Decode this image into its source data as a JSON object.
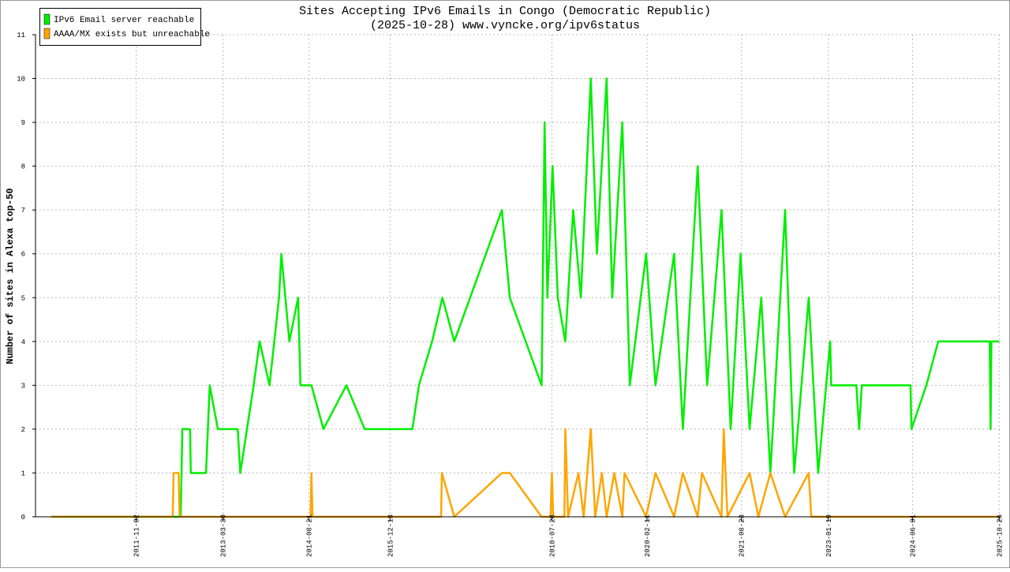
{
  "chart_data": {
    "type": "line",
    "title": "Sites Accepting IPv6 Emails in Congo (Democratic Republic)",
    "subtitle": "(2025-10-28) www.vyncke.org/ipv6status",
    "y_label": "Number of sites in Alexa top-50",
    "xlim": [
      "2010-03-16",
      "2025-11-03"
    ],
    "xticks": [
      "2011-11-02",
      "2013-03-30",
      "2014-08-21",
      "2015-12-13",
      "2018-07-28",
      "2020-02-11",
      "2021-08-23",
      "2023-01-19",
      "2024-06-01",
      "2025-10-26"
    ],
    "ylim": [
      0,
      11
    ],
    "yticks": [
      0,
      1,
      2,
      3,
      4,
      5,
      6,
      7,
      8,
      9,
      10,
      11
    ],
    "grid": true,
    "legend": "top-left",
    "series": [
      {
        "name": "IPv6 Email server reachable",
        "color": "#00ee00",
        "x": [
          "2010-06-18",
          "2012-07-22",
          "2012-08-01",
          "2012-09-16",
          "2012-09-20",
          "2012-12-19",
          "2013-01-10",
          "2013-02-27",
          "2013-06-25",
          "2013-07-10",
          "2013-09-27",
          "2013-11-01",
          "2013-12-30",
          "2014-02-24",
          "2014-03-10",
          "2014-04-26",
          "2014-06-17",
          "2014-07-01",
          "2014-09-04",
          "2014-11-14",
          "2015-03-30",
          "2015-07-16",
          "2016-04-23",
          "2016-06-01",
          "2016-08-18",
          "2016-10-18",
          "2016-12-27",
          "2017-10-05",
          "2017-11-21",
          "2018-05-28",
          "2018-06-15",
          "2018-07-01",
          "2018-08-01",
          "2018-09-01",
          "2018-10-15",
          "2018-12-01",
          "2019-01-15",
          "2019-03-15",
          "2019-04-20",
          "2019-06-17",
          "2019-07-20",
          "2019-09-18",
          "2019-11-01",
          "2020-02-06",
          "2020-04-01",
          "2020-07-20",
          "2020-09-10",
          "2020-12-07",
          "2021-02-01",
          "2021-04-27",
          "2021-06-20",
          "2021-08-18",
          "2021-10-10",
          "2021-12-18",
          "2022-02-10",
          "2022-05-08",
          "2022-07-01",
          "2022-09-25",
          "2022-11-20",
          "2023-01-30",
          "2023-02-05",
          "2023-07-04",
          "2023-07-20",
          "2023-08-05",
          "2024-05-19",
          "2024-05-25",
          "2024-08-21",
          "2024-10-30",
          "2025-08-31",
          "2025-09-05",
          "2025-09-10",
          "2025-10-26"
        ],
        "values": [
          0,
          0,
          2,
          2,
          1,
          1,
          3,
          2,
          2,
          1,
          3,
          4,
          3,
          5,
          6,
          4,
          5,
          3,
          3,
          2,
          3,
          2,
          2,
          3,
          4,
          5,
          4,
          7,
          5,
          3,
          9,
          5,
          8,
          5,
          4,
          7,
          5,
          10,
          6,
          10,
          5,
          9,
          3,
          6,
          3,
          6,
          2,
          8,
          3,
          7,
          2,
          6,
          2,
          5,
          1,
          7,
          1,
          5,
          1,
          4,
          3,
          3,
          2,
          3,
          3,
          2,
          3,
          4,
          4,
          2,
          4,
          4
        ]
      },
      {
        "name": "AAAA/MX exists but unreachable",
        "color": "#ffa500",
        "x": [
          "2010-06-18",
          "2012-06-05",
          "2012-06-10",
          "2012-07-10",
          "2012-07-15",
          "2014-08-30",
          "2014-09-04",
          "2014-09-10",
          "2016-10-10",
          "2016-10-15",
          "2016-12-27",
          "2017-10-05",
          "2017-11-21",
          "2018-05-28",
          "2018-07-20",
          "2018-07-28",
          "2018-08-05",
          "2018-10-10",
          "2018-10-15",
          "2018-11-01",
          "2019-01-01",
          "2019-02-01",
          "2019-03-15",
          "2019-04-10",
          "2019-05-20",
          "2019-06-17",
          "2019-08-01",
          "2019-09-18",
          "2019-10-01",
          "2020-02-06",
          "2020-04-01",
          "2020-07-20",
          "2020-09-10",
          "2020-12-07",
          "2021-01-01",
          "2021-04-27",
          "2021-05-10",
          "2021-06-01",
          "2021-10-10",
          "2021-12-01",
          "2022-02-10",
          "2022-05-08",
          "2022-09-25",
          "2022-10-10",
          "2022-11-01",
          "2025-10-26"
        ],
        "values": [
          0,
          0,
          1,
          1,
          0,
          0,
          1,
          0,
          0,
          1,
          0,
          1,
          1,
          0,
          0,
          1,
          0,
          0,
          2,
          0,
          1,
          0,
          2,
          0,
          1,
          0,
          1,
          0,
          1,
          0,
          1,
          0,
          1,
          0,
          1,
          0,
          2,
          0,
          1,
          0,
          1,
          0,
          1,
          0,
          0,
          0
        ]
      }
    ]
  }
}
